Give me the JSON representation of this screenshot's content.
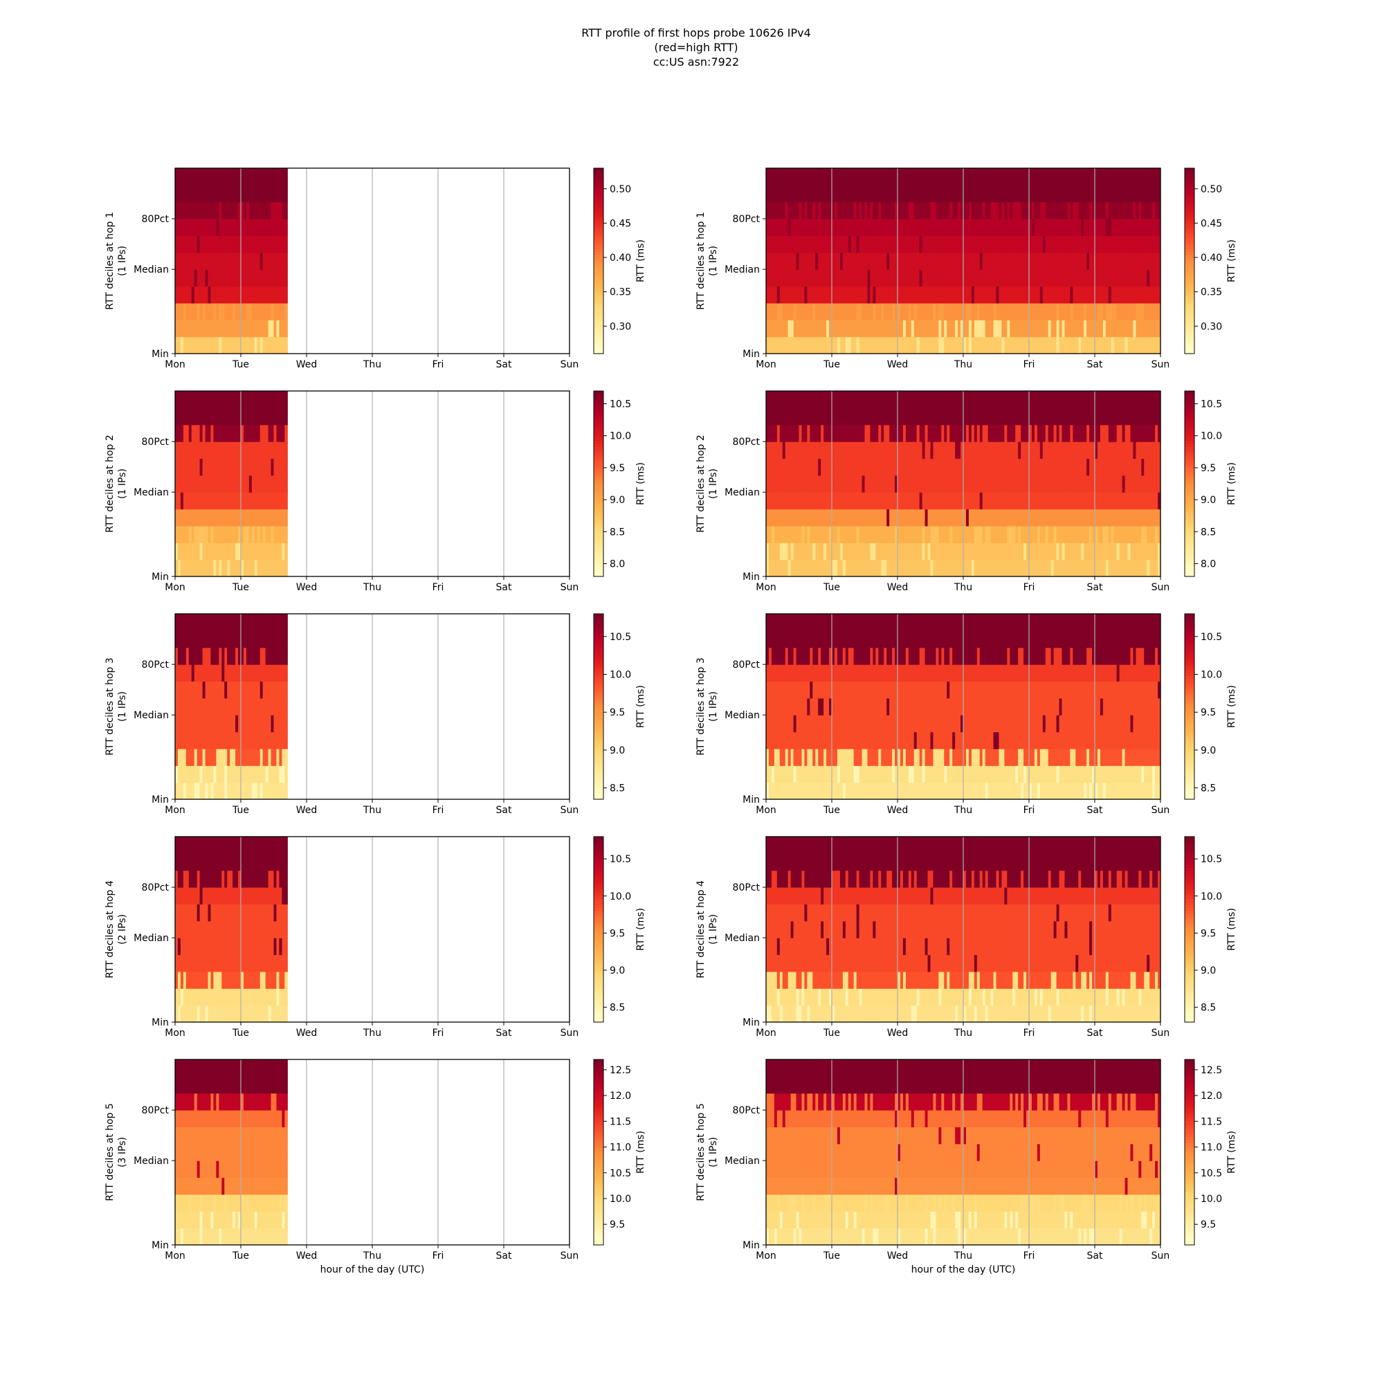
{
  "figure": {
    "title_lines": [
      "RTT profile of first hops probe 10626 IPv4",
      "(red=high RTT)",
      "cc:US asn:7922"
    ]
  },
  "chart_data": [
    {
      "type": "heatmap",
      "panel": "left",
      "hop": 1,
      "ylabel": "RTT deciles at hop 1",
      "ylabel2": "(1 IPs)",
      "xlabel": "",
      "x_ticks": [
        "Mon",
        "Tue",
        "Wed",
        "Thu",
        "Fri",
        "Sat",
        "Sun"
      ],
      "y_ticks": [
        "Min",
        "Median",
        "80Pct"
      ],
      "colorbar": {
        "label": "RTT (ms)",
        "ticks": [
          0.3,
          0.35,
          0.4,
          0.45,
          0.5
        ],
        "range": [
          0.26,
          0.53
        ]
      },
      "coverage_days": 1.7,
      "deciles": [
        0.34,
        0.38,
        0.39,
        0.47,
        0.48,
        0.48,
        0.49,
        0.5,
        0.52,
        0.54
      ]
    },
    {
      "type": "heatmap",
      "panel": "right",
      "hop": 1,
      "ylabel": "RTT deciles at hop 1",
      "ylabel2": "(1 IPs)",
      "xlabel": "",
      "x_ticks": [
        "Mon",
        "Tue",
        "Wed",
        "Thu",
        "Fri",
        "Sat",
        "Sun"
      ],
      "y_ticks": [
        "Min",
        "Median",
        "80Pct"
      ],
      "colorbar": {
        "label": "RTT (ms)",
        "ticks": [
          0.3,
          0.35,
          0.4,
          0.45,
          0.5
        ],
        "range": [
          0.26,
          0.53
        ]
      },
      "coverage_days": 6.0,
      "deciles": [
        0.34,
        0.38,
        0.39,
        0.47,
        0.48,
        0.48,
        0.49,
        0.5,
        0.52,
        0.54
      ]
    },
    {
      "type": "heatmap",
      "panel": "left",
      "hop": 2,
      "ylabel": "RTT deciles at hop 2",
      "ylabel2": "(1 IPs)",
      "xlabel": "",
      "x_ticks": [
        "Mon",
        "Tue",
        "Wed",
        "Thu",
        "Fri",
        "Sat",
        "Sun"
      ],
      "y_ticks": [
        "Min",
        "Median",
        "80Pct"
      ],
      "colorbar": {
        "label": "RTT (ms)",
        "ticks": [
          8.0,
          8.5,
          9.0,
          9.5,
          10.0,
          10.5
        ],
        "range": [
          7.8,
          10.7
        ]
      },
      "coverage_days": 1.7,
      "deciles": [
        8.7,
        8.75,
        8.9,
        9.2,
        9.7,
        9.75,
        9.75,
        9.75,
        10.6,
        10.9
      ]
    },
    {
      "type": "heatmap",
      "panel": "right",
      "hop": 2,
      "ylabel": "RTT deciles at hop 2",
      "ylabel2": "(1 IPs)",
      "xlabel": "",
      "x_ticks": [
        "Mon",
        "Tue",
        "Wed",
        "Thu",
        "Fri",
        "Sat",
        "Sun"
      ],
      "y_ticks": [
        "Min",
        "Median",
        "80Pct"
      ],
      "colorbar": {
        "label": "RTT (ms)",
        "ticks": [
          8.0,
          8.5,
          9.0,
          9.5,
          10.0,
          10.5
        ],
        "range": [
          7.8,
          10.7
        ]
      },
      "coverage_days": 6.0,
      "deciles": [
        8.7,
        8.75,
        8.9,
        9.2,
        9.7,
        9.75,
        9.75,
        9.75,
        10.6,
        10.9
      ]
    },
    {
      "type": "heatmap",
      "panel": "left",
      "hop": 3,
      "ylabel": "RTT deciles at hop 3",
      "ylabel2": "(1 IPs)",
      "xlabel": "",
      "x_ticks": [
        "Mon",
        "Tue",
        "Wed",
        "Thu",
        "Fri",
        "Sat",
        "Sun"
      ],
      "y_ticks": [
        "Min",
        "Median",
        "80Pct"
      ],
      "colorbar": {
        "label": "RTT (ms)",
        "ticks": [
          8.5,
          9.0,
          9.5,
          10.0,
          10.5
        ],
        "range": [
          8.35,
          10.8
        ]
      },
      "coverage_days": 1.7,
      "deciles": [
        8.8,
        8.85,
        9.85,
        9.9,
        9.9,
        9.9,
        9.9,
        10.0,
        10.8,
        11.0
      ]
    },
    {
      "type": "heatmap",
      "panel": "right",
      "hop": 3,
      "ylabel": "RTT deciles at hop 3",
      "ylabel2": "(1 IPs)",
      "xlabel": "",
      "x_ticks": [
        "Mon",
        "Tue",
        "Wed",
        "Thu",
        "Fri",
        "Sat",
        "Sun"
      ],
      "y_ticks": [
        "Min",
        "Median",
        "80Pct"
      ],
      "colorbar": {
        "label": "RTT (ms)",
        "ticks": [
          8.5,
          9.0,
          9.5,
          10.0,
          10.5
        ],
        "range": [
          8.35,
          10.8
        ]
      },
      "coverage_days": 6.0,
      "deciles": [
        8.8,
        8.85,
        9.85,
        9.9,
        9.9,
        9.9,
        9.9,
        10.0,
        10.8,
        11.0
      ]
    },
    {
      "type": "heatmap",
      "panel": "left",
      "hop": 4,
      "ylabel": "RTT deciles at hop 4",
      "ylabel2": "(2 IPs)",
      "xlabel": "",
      "x_ticks": [
        "Mon",
        "Tue",
        "Wed",
        "Thu",
        "Fri",
        "Sat",
        "Sun"
      ],
      "y_ticks": [
        "Min",
        "Median",
        "80Pct"
      ],
      "colorbar": {
        "label": "RTT (ms)",
        "ticks": [
          8.5,
          9.0,
          9.5,
          10.0,
          10.5
        ],
        "range": [
          8.3,
          10.8
        ]
      },
      "coverage_days": 1.7,
      "deciles": [
        8.8,
        8.85,
        9.85,
        9.9,
        9.9,
        9.9,
        9.9,
        10.0,
        10.8,
        11.0
      ]
    },
    {
      "type": "heatmap",
      "panel": "right",
      "hop": 4,
      "ylabel": "RTT deciles at hop 4",
      "ylabel2": "(1 IPs)",
      "xlabel": "",
      "x_ticks": [
        "Mon",
        "Tue",
        "Wed",
        "Thu",
        "Fri",
        "Sat",
        "Sun"
      ],
      "y_ticks": [
        "Min",
        "Median",
        "80Pct"
      ],
      "colorbar": {
        "label": "RTT (ms)",
        "ticks": [
          8.5,
          9.0,
          9.5,
          10.0,
          10.5
        ],
        "range": [
          8.3,
          10.8
        ]
      },
      "coverage_days": 6.0,
      "deciles": [
        8.8,
        8.85,
        9.85,
        9.9,
        9.9,
        9.9,
        9.9,
        10.0,
        10.8,
        11.0
      ]
    },
    {
      "type": "heatmap",
      "panel": "left",
      "hop": 5,
      "ylabel": "RTT deciles at hop 5",
      "ylabel2": "(3 IPs)",
      "xlabel": "hour of the day (UTC)",
      "x_ticks": [
        "Mon",
        "Tue",
        "Wed",
        "Thu",
        "Fri",
        "Sat",
        "Sun"
      ],
      "y_ticks": [
        "Min",
        "Median",
        "80Pct"
      ],
      "colorbar": {
        "label": "RTT (ms)",
        "ticks": [
          9.5,
          10.0,
          10.5,
          11.0,
          11.5,
          12.0,
          12.5
        ],
        "range": [
          9.1,
          12.7
        ]
      },
      "coverage_days": 1.7,
      "deciles": [
        9.8,
        9.9,
        10.0,
        10.9,
        10.95,
        10.95,
        10.95,
        11.1,
        12.2,
        13.0
      ]
    },
    {
      "type": "heatmap",
      "panel": "right",
      "hop": 5,
      "ylabel": "RTT deciles at hop 5",
      "ylabel2": "(1 IPs)",
      "xlabel": "hour of the day (UTC)",
      "x_ticks": [
        "Mon",
        "Tue",
        "Wed",
        "Thu",
        "Fri",
        "Sat",
        "Sun"
      ],
      "y_ticks": [
        "Min",
        "Median",
        "80Pct"
      ],
      "colorbar": {
        "label": "RTT (ms)",
        "ticks": [
          9.5,
          10.0,
          10.5,
          11.0,
          11.5,
          12.0,
          12.5
        ],
        "range": [
          9.1,
          12.7
        ]
      },
      "coverage_days": 6.0,
      "deciles": [
        9.8,
        9.9,
        10.0,
        10.9,
        10.95,
        10.95,
        10.95,
        11.1,
        12.2,
        13.0
      ]
    }
  ]
}
